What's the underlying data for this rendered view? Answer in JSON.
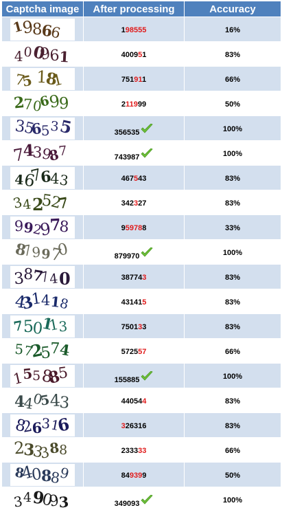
{
  "headers": {
    "captcha": "Captcha image",
    "processed": "After processing",
    "accuracy": "Accuracy"
  },
  "colors": {
    "header_bg": "#4f81bd",
    "band": "#d3dfee",
    "wrong_digit": "#e01b1b",
    "check": "#6fbf3a"
  },
  "rows": [
    {
      "captcha_text": "19866",
      "captcha_color": "#5a3a1a",
      "result": "198555",
      "wrong": [
        1,
        2,
        3,
        4,
        5
      ],
      "accuracy": "16%",
      "check": false
    },
    {
      "captcha_text": "400961",
      "captcha_color": "#4a2030",
      "result": "400951",
      "wrong": [
        4
      ],
      "accuracy": "83%",
      "check": false
    },
    {
      "captcha_text": "75 181",
      "captcha_color": "#6a5a1a",
      "result": "751911",
      "wrong": [
        3,
        4
      ],
      "accuracy": "66%",
      "check": false
    },
    {
      "captcha_text": "270699",
      "captcha_color": "#3a6a1a",
      "result": "211999",
      "wrong": [
        1,
        2,
        3
      ],
      "accuracy": "50%",
      "check": false
    },
    {
      "captcha_text": "356535",
      "captcha_color": "#2a2a6a",
      "result": "356535",
      "wrong": [],
      "accuracy": "100%",
      "check": true
    },
    {
      "captcha_text": "743987",
      "captcha_color": "#4a1a3a",
      "result": "743987",
      "wrong": [],
      "accuracy": "100%",
      "check": true
    },
    {
      "captcha_text": "467643",
      "captcha_color": "#1a2a1a",
      "result": "467543",
      "wrong": [
        3
      ],
      "accuracy": "83%",
      "check": false
    },
    {
      "captcha_text": "342527",
      "captcha_color": "#3a4a1a",
      "result": "342327",
      "wrong": [
        3
      ],
      "accuracy": "83%",
      "check": false
    },
    {
      "captcha_text": "992978",
      "captcha_color": "#3a1a5a",
      "result": "959788",
      "wrong": [
        1,
        2,
        3,
        4
      ],
      "accuracy": "33%",
      "check": false
    },
    {
      "captcha_text": "879970",
      "captcha_color": "#6a6a5a",
      "result": "879970",
      "wrong": [],
      "accuracy": "100%",
      "check": true
    },
    {
      "captcha_text": "387740",
      "captcha_color": "#2a1a3a",
      "result": "387743",
      "wrong": [
        5
      ],
      "accuracy": "83%",
      "check": false
    },
    {
      "captcha_text": "431418",
      "captcha_color": "#1a2a6a",
      "result": "431415",
      "wrong": [
        5
      ],
      "accuracy": "83%",
      "check": false
    },
    {
      "captcha_text": "750113",
      "captcha_color": "#1a6a5a",
      "result": "750133",
      "wrong": [
        4
      ],
      "accuracy": "83%",
      "check": false
    },
    {
      "captcha_text": "572574",
      "captcha_color": "#1a5a2a",
      "result": "572557",
      "wrong": [
        4,
        5
      ],
      "accuracy": "66%",
      "check": false
    },
    {
      "captcha_text": "155885",
      "captcha_color": "#4a1a2a",
      "result": "155885",
      "wrong": [],
      "accuracy": "100%",
      "check": true
    },
    {
      "captcha_text": "440543",
      "captcha_color": "#3a4a4a",
      "result": "440544",
      "wrong": [
        5
      ],
      "accuracy": "83%",
      "check": false
    },
    {
      "captcha_text": "826316",
      "captcha_color": "#1a1a5a",
      "result": "326316",
      "wrong": [
        0
      ],
      "accuracy": "83%",
      "check": false
    },
    {
      "captcha_text": "233388",
      "captcha_color": "#4a4a2a",
      "result": "233333",
      "wrong": [
        4,
        5
      ],
      "accuracy": "66%",
      "check": false
    },
    {
      "captcha_text": "840889",
      "captcha_color": "#2a3a5a",
      "result": "849399",
      "wrong": [
        2,
        3,
        4
      ],
      "accuracy": "50%",
      "check": false
    },
    {
      "captcha_text": "349093",
      "captcha_color": "#1a1a1a",
      "result": "349093",
      "wrong": [],
      "accuracy": "100%",
      "check": true
    }
  ]
}
